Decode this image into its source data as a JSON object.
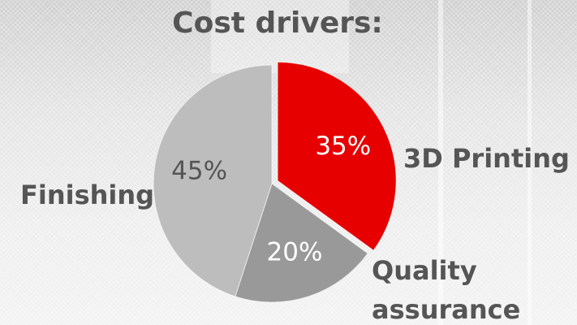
{
  "chart_data": {
    "type": "pie",
    "title": "Cost drivers:",
    "categories": [
      "3D Printing",
      "Quality assurance",
      "Finishing"
    ],
    "values": [
      35,
      20,
      45
    ],
    "value_labels": [
      "35%",
      "20%",
      "45%"
    ],
    "colors": [
      "#e60000",
      "#999999",
      "#bdbdbd"
    ]
  }
}
